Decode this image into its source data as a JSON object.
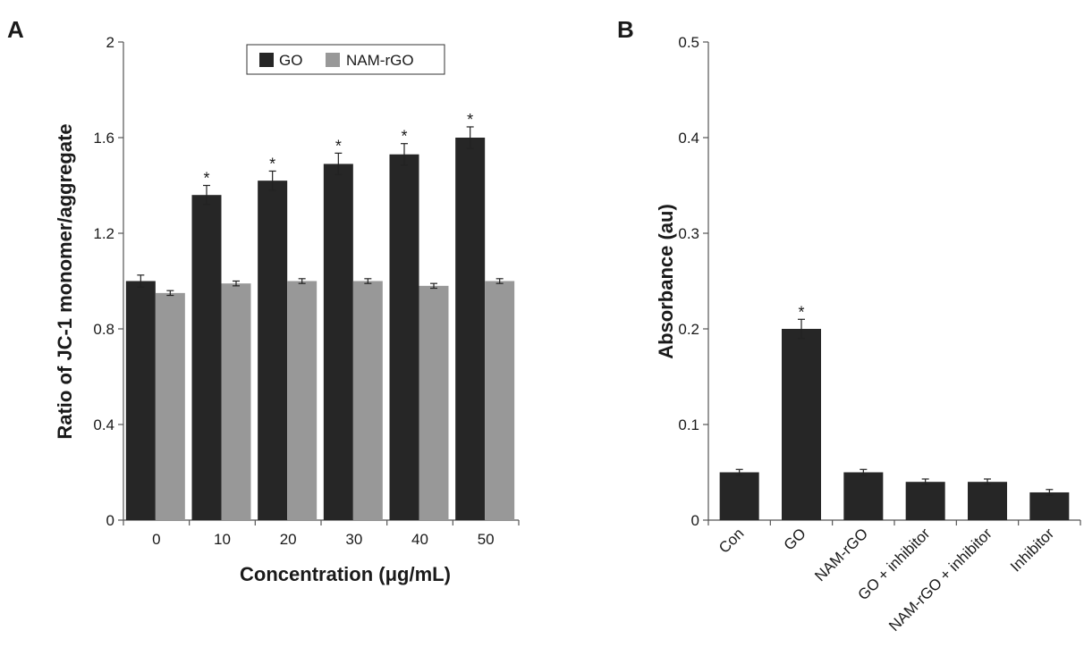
{
  "panel_a": {
    "letter": "A"
  },
  "panel_b": {
    "letter": "B"
  },
  "chart_data": [
    {
      "type": "bar",
      "panel": "A",
      "categories": [
        "0",
        "10",
        "20",
        "30",
        "40",
        "50"
      ],
      "series": [
        {
          "name": "GO",
          "values": [
            1.0,
            1.36,
            1.42,
            1.49,
            1.53,
            1.6
          ],
          "errors": [
            0.025,
            0.04,
            0.04,
            0.045,
            0.045,
            0.045
          ],
          "color": "#262626"
        },
        {
          "name": "NAM-rGO",
          "values": [
            0.95,
            0.99,
            1.0,
            1.0,
            0.98,
            1.0
          ],
          "errors": [
            0.01,
            0.01,
            0.01,
            0.01,
            0.01,
            0.01
          ],
          "color": "#989898"
        }
      ],
      "significance": [
        {
          "series": "GO",
          "category": "10",
          "text": "*"
        },
        {
          "series": "GO",
          "category": "20",
          "text": "*"
        },
        {
          "series": "GO",
          "category": "30",
          "text": "*"
        },
        {
          "series": "GO",
          "category": "40",
          "text": "*"
        },
        {
          "series": "GO",
          "category": "50",
          "text": "*"
        }
      ],
      "xlabel": "Concentration (μg/mL)",
      "ylabel": "Ratio of JC-1 monomer/aggregate",
      "ylim": [
        0,
        2
      ],
      "yticks": [
        "0",
        "0.4",
        "0.8",
        "1.2",
        "1.6",
        "2"
      ],
      "legend_position": "top-center",
      "grid": false
    },
    {
      "type": "bar",
      "panel": "B",
      "categories": [
        "Con",
        "GO",
        "NAM-rGO",
        "GO + inhibitor",
        "NAM-rGO + inhibitor",
        "Inhibitor"
      ],
      "values": [
        0.05,
        0.2,
        0.05,
        0.04,
        0.04,
        0.029
      ],
      "errors": [
        0.003,
        0.01,
        0.003,
        0.003,
        0.003,
        0.003
      ],
      "color": "#262626",
      "significance": [
        {
          "category": "GO",
          "text": "*"
        }
      ],
      "xlabel": "",
      "ylabel": "Absorbance (au)",
      "ylim": [
        0,
        0.5
      ],
      "yticks": [
        "0",
        "0.1",
        "0.2",
        "0.3",
        "0.4",
        "0.5"
      ],
      "grid": false
    }
  ]
}
